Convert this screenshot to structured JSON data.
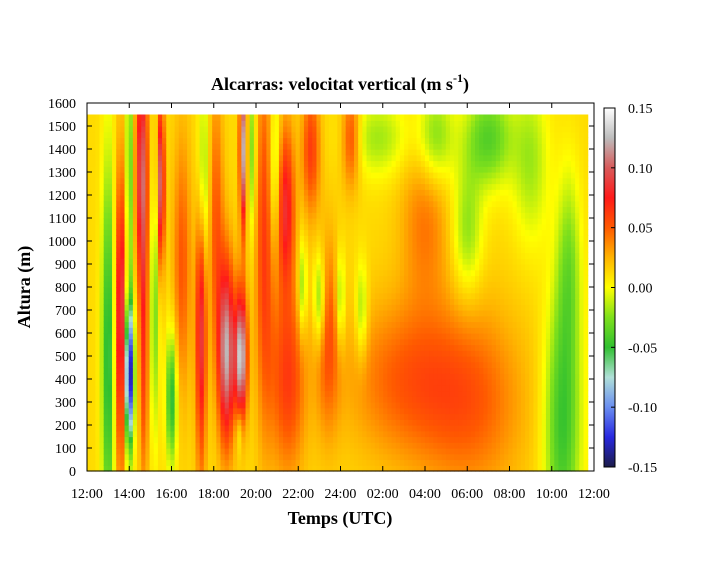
{
  "chart_data": {
    "type": "heatmap",
    "title": "Alcarras: velocitat vertical (m s-1)",
    "title_parts": {
      "main": "Alcarras: velocitat vertical (m s",
      "superscript": "-1",
      "close": ")"
    },
    "xlabel": "Temps (UTC)",
    "ylabel": "Altura (m)",
    "x_ticks": [
      "12:00",
      "14:00",
      "16:00",
      "18:00",
      "20:00",
      "22:00",
      "24:00",
      "02:00",
      "04:00",
      "06:00",
      "08:00",
      "10:00",
      "12:00"
    ],
    "xlim_hours": [
      12,
      36
    ],
    "y_ticks": [
      0,
      100,
      200,
      300,
      400,
      500,
      600,
      700,
      800,
      900,
      1000,
      1100,
      1200,
      1300,
      1400,
      1500,
      1600
    ],
    "ylim": [
      0,
      1600
    ],
    "data_height_range": [
      0,
      1550
    ],
    "data_time_range_hours": [
      12,
      35.7
    ],
    "colorbar": {
      "min": -0.15,
      "max": 0.15,
      "ticks": [
        "0.15",
        "0.10",
        "0.05",
        "0.00",
        "-0.05",
        "-0.10",
        "-0.15"
      ],
      "stops": [
        {
          "value": -0.15,
          "color": "#1c1c4a"
        },
        {
          "value": -0.125,
          "color": "#2828e0"
        },
        {
          "value": -0.1,
          "color": "#6a8ef0"
        },
        {
          "value": -0.075,
          "color": "#b0e0d8"
        },
        {
          "value": -0.05,
          "color": "#30c030"
        },
        {
          "value": -0.025,
          "color": "#7ee01c"
        },
        {
          "value": 0.0,
          "color": "#ffff00"
        },
        {
          "value": 0.025,
          "color": "#ffb400"
        },
        {
          "value": 0.05,
          "color": "#ff5a00"
        },
        {
          "value": 0.075,
          "color": "#ff1a1a"
        },
        {
          "value": 0.1,
          "color": "#d85a5a"
        },
        {
          "value": 0.125,
          "color": "#bdbdbd"
        },
        {
          "value": 0.15,
          "color": "#ffffff"
        }
      ]
    },
    "features": [
      {
        "t": 13.0,
        "z": 500,
        "st": 0.22,
        "sz": 600,
        "w": -0.07
      },
      {
        "t": 13.6,
        "z": 650,
        "st": 0.18,
        "sz": 450,
        "w": 0.09
      },
      {
        "t": 14.0,
        "z": 420,
        "st": 0.15,
        "sz": 220,
        "w": -0.16
      },
      {
        "t": 14.0,
        "z": 1300,
        "st": 0.12,
        "sz": 400,
        "w": -0.05
      },
      {
        "t": 14.6,
        "z": 1300,
        "st": 0.2,
        "sz": 350,
        "w": 0.09
      },
      {
        "t": 14.7,
        "z": 500,
        "st": 0.15,
        "sz": 400,
        "w": 0.05
      },
      {
        "t": 15.2,
        "z": 700,
        "st": 0.15,
        "sz": 400,
        "w": -0.04
      },
      {
        "t": 15.5,
        "z": 1250,
        "st": 0.12,
        "sz": 250,
        "w": 0.1
      },
      {
        "t": 16.0,
        "z": 320,
        "st": 0.18,
        "sz": 200,
        "w": -0.07
      },
      {
        "t": 16.5,
        "z": 900,
        "st": 0.3,
        "sz": 400,
        "w": 0.04
      },
      {
        "t": 17.4,
        "z": 650,
        "st": 0.18,
        "sz": 450,
        "w": 0.08
      },
      {
        "t": 17.5,
        "z": 1250,
        "st": 0.2,
        "sz": 300,
        "w": -0.05
      },
      {
        "t": 18.1,
        "z": 1100,
        "st": 0.25,
        "sz": 400,
        "w": 0.04
      },
      {
        "t": 18.6,
        "z": 520,
        "st": 0.28,
        "sz": 280,
        "w": 0.11
      },
      {
        "t": 19.2,
        "z": 180,
        "st": 0.12,
        "sz": 80,
        "w": -0.03
      },
      {
        "t": 19.3,
        "z": 500,
        "st": 0.2,
        "sz": 200,
        "w": 0.12
      },
      {
        "t": 19.4,
        "z": 1400,
        "st": 0.12,
        "sz": 250,
        "w": 0.11
      },
      {
        "t": 19.8,
        "z": 1400,
        "st": 0.15,
        "sz": 250,
        "w": -0.04
      },
      {
        "t": 20.4,
        "z": 1000,
        "st": 0.3,
        "sz": 550,
        "w": 0.05
      },
      {
        "t": 20.9,
        "z": 1300,
        "st": 0.18,
        "sz": 250,
        "w": -0.04
      },
      {
        "t": 21.4,
        "z": 1150,
        "st": 0.3,
        "sz": 250,
        "w": 0.07
      },
      {
        "t": 21.5,
        "z": 400,
        "st": 0.6,
        "sz": 300,
        "w": 0.05
      },
      {
        "t": 22.2,
        "z": 800,
        "st": 0.15,
        "sz": 150,
        "w": -0.04
      },
      {
        "t": 22.6,
        "z": 1400,
        "st": 0.3,
        "sz": 200,
        "w": 0.05
      },
      {
        "t": 23.0,
        "z": 750,
        "st": 0.2,
        "sz": 150,
        "w": -0.05
      },
      {
        "t": 23.4,
        "z": 600,
        "st": 0.4,
        "sz": 300,
        "w": 0.04
      },
      {
        "t": 24.0,
        "z": 750,
        "st": 0.15,
        "sz": 150,
        "w": -0.04
      },
      {
        "t": 24.5,
        "z": 1450,
        "st": 0.3,
        "sz": 150,
        "w": 0.05
      },
      {
        "t": 25.0,
        "z": 700,
        "st": 0.2,
        "sz": 150,
        "w": -0.035
      },
      {
        "t": 25.8,
        "z": 1450,
        "st": 1.0,
        "sz": 120,
        "w": -0.03
      },
      {
        "t": 27.0,
        "z": 400,
        "st": 2.0,
        "sz": 250,
        "w": 0.035
      },
      {
        "t": 28.0,
        "z": 1100,
        "st": 0.8,
        "sz": 250,
        "w": 0.03
      },
      {
        "t": 28.5,
        "z": 1450,
        "st": 0.6,
        "sz": 150,
        "w": -0.04
      },
      {
        "t": 30.2,
        "z": 300,
        "st": 1.8,
        "sz": 300,
        "w": 0.035
      },
      {
        "t": 30.0,
        "z": 1050,
        "st": 0.5,
        "sz": 200,
        "w": -0.035
      },
      {
        "t": 31.0,
        "z": 1450,
        "st": 0.8,
        "sz": 150,
        "w": -0.05
      },
      {
        "t": 33.0,
        "z": 1350,
        "st": 0.6,
        "sz": 250,
        "w": -0.03
      },
      {
        "t": 34.5,
        "z": 200,
        "st": 0.6,
        "sz": 400,
        "w": -0.06
      },
      {
        "t": 34.8,
        "z": 900,
        "st": 0.4,
        "sz": 300,
        "w": -0.035
      }
    ]
  }
}
